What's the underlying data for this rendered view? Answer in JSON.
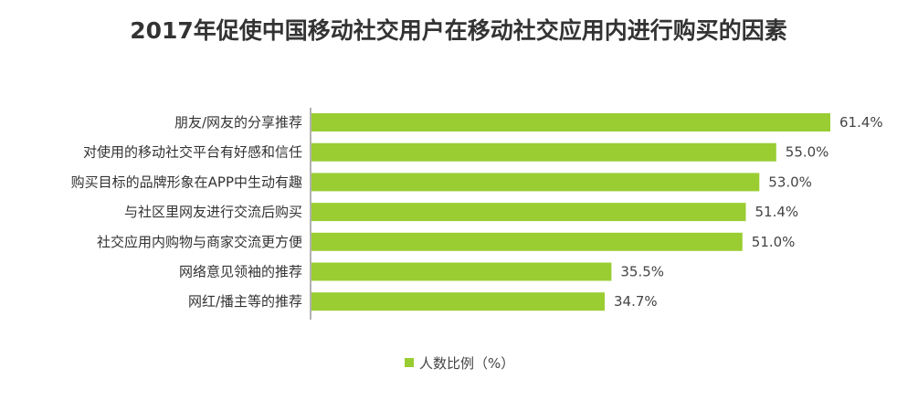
{
  "chart_data": {
    "type": "bar",
    "orientation": "horizontal",
    "title": "2017年促使中国移动社交用户在移动社交应用内进行购买的因素",
    "categories": [
      "朋友/网友的分享推荐",
      "对使用的移动社交平台有好感和信任",
      "购买目标的品牌形象在APP中生动有趣",
      "与社区里网友进行交流后购买",
      "社交应用内购物与商家交流更方便",
      "网络意见领袖的推荐",
      "网红/播主等的推荐"
    ],
    "series": [
      {
        "name": "人数比例（%）",
        "values": [
          61.4,
          55.0,
          53.0,
          51.4,
          51.0,
          35.5,
          34.7
        ],
        "value_labels": [
          "61.4%",
          "55.0%",
          "53.0%",
          "51.4%",
          "51.0%",
          "35.5%",
          "34.7%"
        ]
      }
    ],
    "xlim": [
      0,
      66
    ],
    "grid": false,
    "legend_position": "bottom-center",
    "colors": {
      "bar": "#9ACD32",
      "axis": "#666666",
      "text": "#333333"
    }
  }
}
